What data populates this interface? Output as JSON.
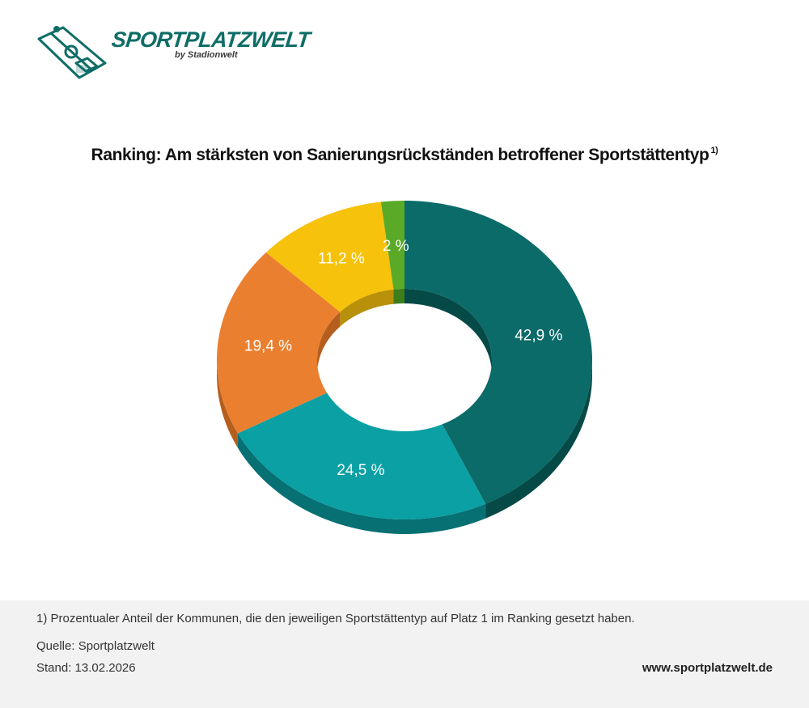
{
  "brand": {
    "name": "SPORTPLATZWELT",
    "byline": "by Stadionwelt"
  },
  "chart_title": "Ranking: Am stärksten von Sanierungsrückständen betroffener Sportstättentyp",
  "chart_title_note": "1)",
  "chart_data": {
    "type": "pie",
    "style": "3d-donut",
    "values": [
      42.9,
      24.5,
      19.4,
      11.2,
      2.0
    ],
    "labels": [
      "42,9 %",
      "24,5 %",
      "19,4 %",
      "11,2 %",
      "2 %"
    ],
    "colors": [
      "#0a6b68",
      "#0aa0a4",
      "#ea7f30",
      "#f6c20c",
      "#5aaa28"
    ],
    "side_colors": [
      "#064a48",
      "#077073",
      "#b55e1e",
      "#b8900a",
      "#3d7e1a"
    ],
    "start": "top-center",
    "direction": "clockwise"
  },
  "footer": {
    "footnote": "1) Prozentualer Anteil der Kommunen, die den jeweiligen Sportstättentyp auf Platz 1 im Ranking gesetzt haben.",
    "source": "Quelle: Sportplatzwelt",
    "stand": "Stand: 13.02.2026",
    "url": "www.sportplatzwelt.de"
  }
}
